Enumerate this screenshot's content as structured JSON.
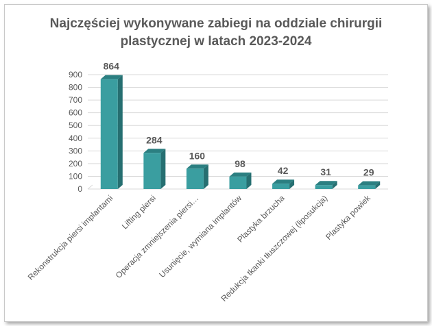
{
  "title_line1": "Najczęściej wykonywane zabiegi na oddziale chirurgii",
  "title_line2": "plastycznej w latach 2023-2024",
  "colors": {
    "bar_front": "#3a9ea0",
    "bar_side": "#266f71",
    "bar_top": "#2b7f81",
    "grid": "#d9d9d9",
    "text": "#595959"
  },
  "chart_data": {
    "type": "bar",
    "title": "Najczęściej wykonywane zabiegi na oddziale chirurgii plastycznej w latach 2023-2024",
    "categories": [
      "Rekonstrukcja piersi implantami",
      "Lifting piersi",
      "Operacja zmniejszenia piersi…",
      "Usunięcie, wymiana implantów",
      "Plastyka brzucha",
      "Redukcja tkanki tłuszczowej (liposukcja)",
      "Plastyka powiek"
    ],
    "values": [
      864,
      284,
      160,
      98,
      42,
      31,
      29
    ],
    "data_labels": [
      "864",
      "284",
      "160",
      "98",
      "42",
      "31",
      "29"
    ],
    "ylim": [
      0,
      900
    ],
    "yticks": [
      0,
      100,
      200,
      300,
      400,
      500,
      600,
      700,
      800,
      900
    ],
    "grid": true,
    "legend": "none",
    "style": "3d-column"
  }
}
